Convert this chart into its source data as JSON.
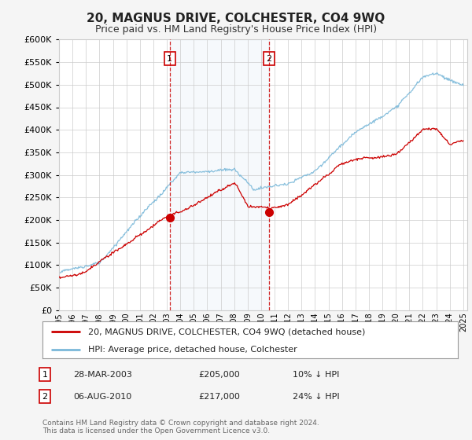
{
  "title": "20, MAGNUS DRIVE, COLCHESTER, CO4 9WQ",
  "subtitle": "Price paid vs. HM Land Registry's House Price Index (HPI)",
  "hpi_color": "#7ab8d9",
  "price_color": "#cc0000",
  "background_color": "#f5f5f5",
  "plot_bg_color": "#ffffff",
  "grid_color": "#cccccc",
  "ylim": [
    0,
    600000
  ],
  "yticks": [
    0,
    50000,
    100000,
    150000,
    200000,
    250000,
    300000,
    350000,
    400000,
    450000,
    500000,
    550000,
    600000
  ],
  "sale1_year": 2003.22,
  "sale1_price": 205000,
  "sale1_label": "1",
  "sale1_date": "28-MAR-2003",
  "sale1_hpi_diff": "10% ↓ HPI",
  "sale2_year": 2010.58,
  "sale2_price": 217000,
  "sale2_label": "2",
  "sale2_date": "06-AUG-2010",
  "sale2_hpi_diff": "24% ↓ HPI",
  "legend_line1": "20, MAGNUS DRIVE, COLCHESTER, CO4 9WQ (detached house)",
  "legend_line2": "HPI: Average price, detached house, Colchester",
  "footer": "Contains HM Land Registry data © Crown copyright and database right 2024.\nThis data is licensed under the Open Government Licence v3.0."
}
